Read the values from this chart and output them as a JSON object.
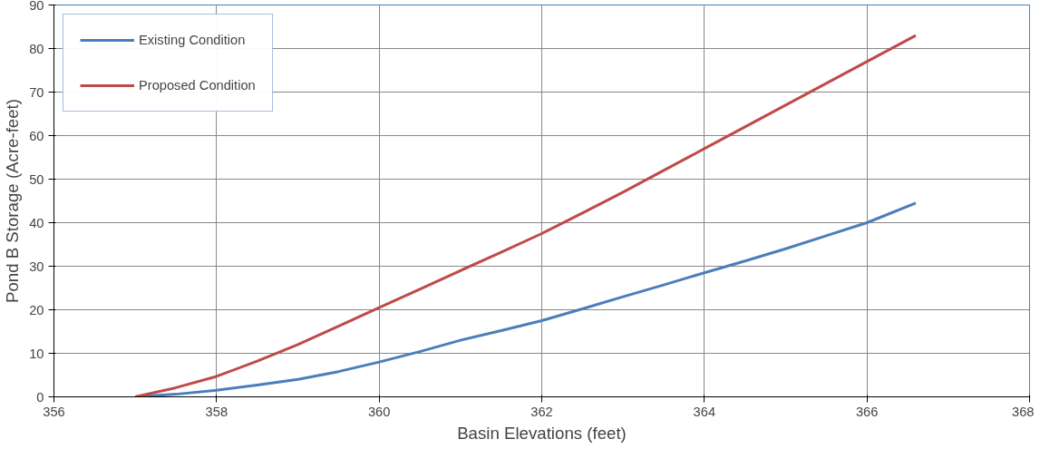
{
  "chart_data": {
    "type": "line",
    "xlabel": "Basin Elevations (feet)",
    "ylabel": "Pond B Storage (Acre-feet)",
    "xlim": [
      356,
      368
    ],
    "xticks": [
      356,
      358,
      360,
      362,
      364,
      366,
      368
    ],
    "ylim": [
      0,
      90
    ],
    "yticks": [
      0,
      10,
      20,
      30,
      40,
      50,
      60,
      70,
      80,
      90
    ],
    "grid": true,
    "legend": "top left",
    "marker": "none",
    "line_style": "solid",
    "series": [
      {
        "name": "Existing Condition",
        "color": "#4a7ebb",
        "x": [
          357,
          357.5,
          358,
          358.5,
          359,
          359.5,
          360,
          360.5,
          361,
          361.5,
          362,
          362.5,
          363,
          363.5,
          364,
          364.5,
          365,
          365.5,
          366,
          366.6
        ],
        "values": [
          0,
          0.6,
          1.5,
          2.7,
          4,
          5.8,
          8,
          10.4,
          13,
          15.2,
          17.5,
          20.2,
          23,
          25.7,
          28.5,
          31.2,
          34,
          37,
          40,
          44.5
        ]
      },
      {
        "name": "Proposed Condition",
        "color": "#be4b48",
        "x": [
          357,
          357.5,
          358,
          358.5,
          359,
          359.5,
          360,
          360.5,
          361,
          361.5,
          362,
          362.5,
          363,
          363.5,
          364,
          364.5,
          365,
          365.5,
          366,
          366.6
        ],
        "values": [
          0,
          2.1,
          4.7,
          8.2,
          12,
          16.2,
          20.5,
          24.7,
          29,
          33.2,
          37.5,
          42.2,
          47,
          52,
          57,
          62,
          67,
          72,
          77,
          83
        ]
      }
    ]
  }
}
